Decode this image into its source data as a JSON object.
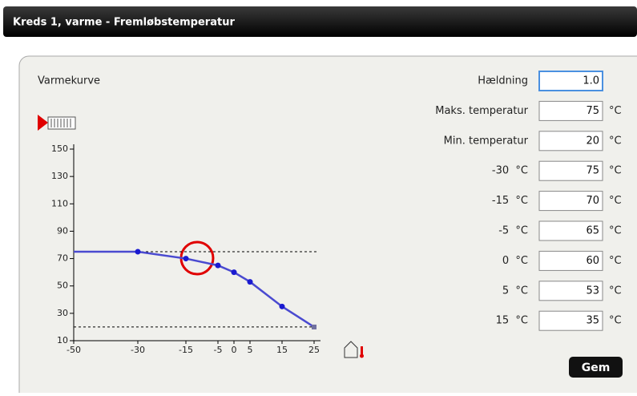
{
  "header": {
    "title": "Kreds 1, varme - Fremløbstemperatur"
  },
  "chart_data": {
    "type": "line",
    "title": "Varmekurve",
    "x": [
      -50,
      -30,
      -15,
      -5,
      0,
      5,
      15,
      25
    ],
    "series": [
      {
        "color": "#4a4ad0",
        "values": [
          75,
          75,
          70,
          65,
          60,
          53,
          35,
          20
        ]
      }
    ],
    "xlim": [
      -50,
      25
    ],
    "xticks": [
      -50,
      -30,
      -15,
      -5,
      0,
      5,
      15,
      25
    ],
    "ylim": [
      10,
      150
    ],
    "yticks": [
      150,
      130,
      110,
      90,
      70,
      50,
      30,
      10
    ]
  },
  "form": {
    "fields": [
      {
        "label": "Hældning",
        "value": "1.0"
      },
      {
        "label": "Maks. temperatur",
        "value": 75,
        "unit": "°C"
      },
      {
        "label": "Min. temperatur",
        "value": 20,
        "unit": "°C"
      },
      {
        "label": "-30  °C",
        "value": 75,
        "unit": "°C"
      },
      {
        "label": "-15  °C",
        "value": 70,
        "unit": "°C"
      },
      {
        "label": "-5  °C",
        "value": 65,
        "unit": "°C"
      },
      {
        "label": "0  °C",
        "value": 60,
        "unit": "°C"
      },
      {
        "label": "5  °C",
        "value": 53,
        "unit": "°C"
      },
      {
        "label": "15  °C",
        "value": 35,
        "unit": "°C"
      }
    ],
    "button": "Gem"
  }
}
